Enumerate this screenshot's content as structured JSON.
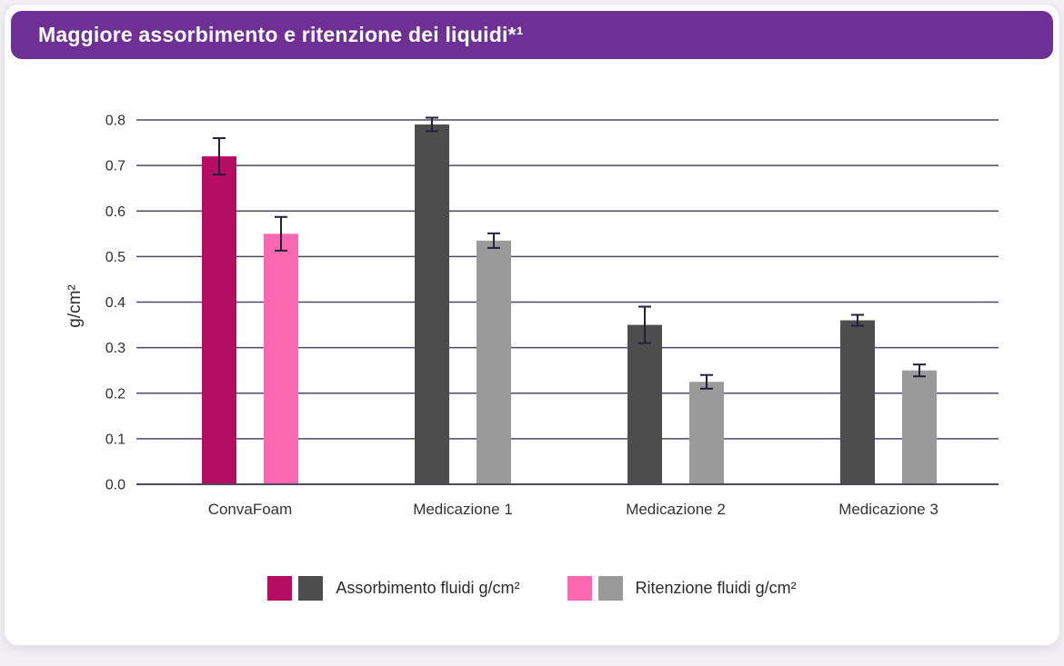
{
  "header": {
    "title": "Maggiore assorbimento e ritenzione dei liquidi*¹",
    "banner_color": "#6e3094",
    "title_color": "#ffffff"
  },
  "chart_data": {
    "type": "bar",
    "title": "Maggiore assorbimento e ritenzione dei liquidi*¹",
    "ylabel": "g/cm²",
    "ylim": [
      0.0,
      0.8
    ],
    "ytick_step": 0.1,
    "grid": true,
    "categories": [
      "ConvaFoam",
      "Medicazione 1",
      "Medicazione 2",
      "Medicazione 3"
    ],
    "series": [
      {
        "name": "Assorbimento fluidi g/cm²",
        "values": [
          0.72,
          0.79,
          0.35,
          0.36
        ],
        "errors": [
          0.04,
          0.015,
          0.04,
          0.012
        ],
        "bar_colors": [
          "#b50d62",
          "#4d4d4d",
          "#4d4d4d",
          "#4d4d4d"
        ]
      },
      {
        "name": "Ritenzione fluidi g/cm²",
        "values": [
          0.55,
          0.535,
          0.225,
          0.25
        ],
        "errors": [
          0.037,
          0.016,
          0.015,
          0.013
        ],
        "bar_colors": [
          "#f968b0",
          "#9a9a9a",
          "#9a9a9a",
          "#9a9a9a"
        ]
      }
    ],
    "legend": [
      {
        "swatches": [
          "#b50d62",
          "#4d4d4d"
        ],
        "label": "Assorbimento fluidi g/cm²"
      },
      {
        "swatches": [
          "#f968b0",
          "#9a9a9a"
        ],
        "label": "Ritenzione fluidi g/cm²"
      }
    ],
    "legend_position": "bottom",
    "error_bar_color": "#241f3a",
    "grid_color": "#4e4860"
  }
}
